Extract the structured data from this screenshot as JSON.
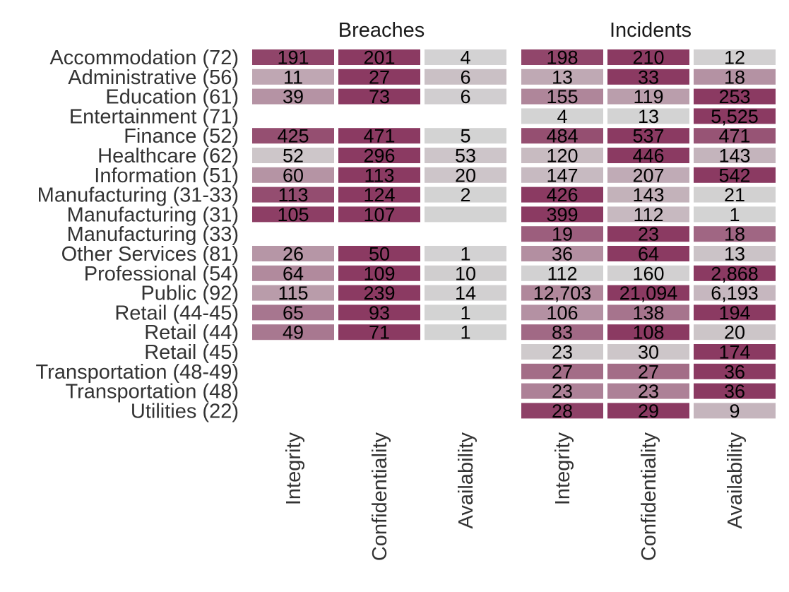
{
  "chart_data": {
    "type": "heatmap",
    "facets": [
      "Breaches",
      "Incidents"
    ],
    "columns": [
      "Integrity",
      "Confidentiality",
      "Availability"
    ],
    "rows": [
      "Accommodation (72)",
      "Administrative (56)",
      "Education (61)",
      "Entertainment (71)",
      "Finance (52)",
      "Healthcare (62)",
      "Information (51)",
      "Manufacturing (31-33)",
      "Manufacturing (31)",
      "Manufacturing (33)",
      "Other Services (81)",
      "Professional (54)",
      "Public (92)",
      "Retail (44-45)",
      "Retail (44)",
      "Retail (45)",
      "Transportation (48-49)",
      "Transportation (48)",
      "Utilities (22)"
    ],
    "values": {
      "Breaches": [
        [
          "191",
          "201",
          "4"
        ],
        [
          "11",
          "27",
          "6"
        ],
        [
          "39",
          "73",
          "6"
        ],
        [
          null,
          null,
          null
        ],
        [
          "425",
          "471",
          "5"
        ],
        [
          "52",
          "296",
          "53"
        ],
        [
          "60",
          "113",
          "20"
        ],
        [
          "113",
          "124",
          "2"
        ],
        [
          "105",
          "107",
          ""
        ],
        [
          null,
          null,
          null
        ],
        [
          "26",
          "50",
          "1"
        ],
        [
          "64",
          "109",
          "10"
        ],
        [
          "115",
          "239",
          "14"
        ],
        [
          "65",
          "93",
          "1"
        ],
        [
          "49",
          "71",
          "1"
        ],
        [
          null,
          null,
          null
        ],
        [
          null,
          null,
          null
        ],
        [
          null,
          null,
          null
        ],
        [
          null,
          null,
          null
        ]
      ],
      "Incidents": [
        [
          "198",
          "210",
          "12"
        ],
        [
          "13",
          "33",
          "18"
        ],
        [
          "155",
          "119",
          "253"
        ],
        [
          "4",
          "13",
          "5,525"
        ],
        [
          "484",
          "537",
          "471"
        ],
        [
          "120",
          "446",
          "143"
        ],
        [
          "147",
          "207",
          "542"
        ],
        [
          "426",
          "143",
          "21"
        ],
        [
          "399",
          "112",
          "1"
        ],
        [
          "19",
          "23",
          "18"
        ],
        [
          "36",
          "64",
          "13"
        ],
        [
          "112",
          "160",
          "2,868"
        ],
        [
          "12,703",
          "21,094",
          "6,193"
        ],
        [
          "106",
          "138",
          "194"
        ],
        [
          "83",
          "108",
          "20"
        ],
        [
          "23",
          "30",
          "174"
        ],
        [
          "27",
          "27",
          "36"
        ],
        [
          "23",
          "23",
          "36"
        ],
        [
          "28",
          "29",
          "9"
        ]
      ]
    },
    "shade_scale": "row-relative share; grey (low) to plum (high)",
    "colors": {
      "low": "#d3d3d3",
      "high": "#8b3a62",
      "background": "#ffffff"
    }
  }
}
